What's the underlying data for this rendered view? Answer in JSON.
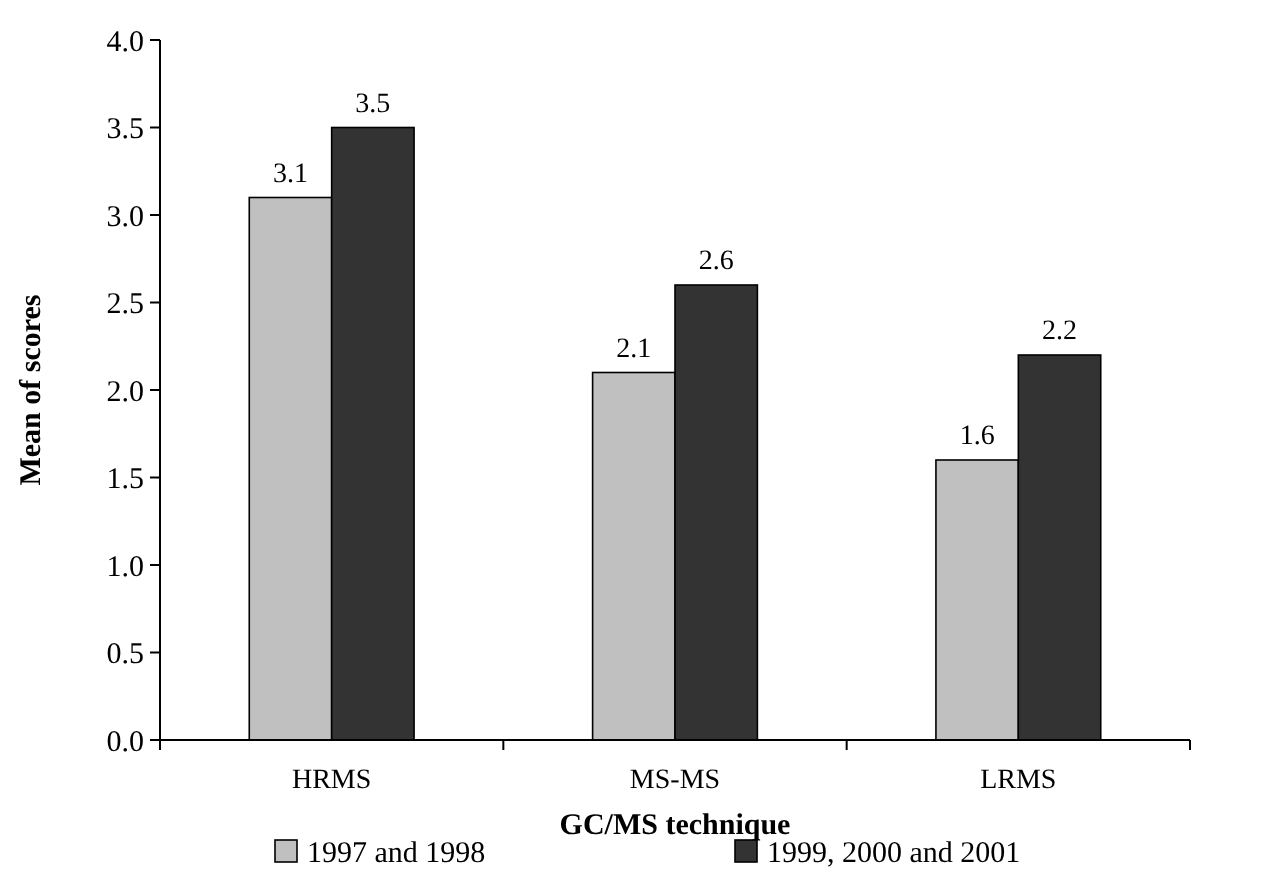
{
  "chart_data": {
    "type": "bar",
    "xlabel": "GC/MS technique",
    "ylabel": "Mean of scores",
    "categories": [
      "HRMS",
      "MS-MS",
      "LRMS"
    ],
    "series": [
      {
        "name": "1997 and 1998",
        "color": "#c0c0c0",
        "values": [
          3.1,
          2.1,
          1.6
        ]
      },
      {
        "name": "1999, 2000 and 2001",
        "color": "#333333",
        "values": [
          3.5,
          2.6,
          2.2
        ]
      }
    ],
    "ylim": [
      0,
      4
    ],
    "yticks": [
      {
        "value": 0,
        "label": "0.0"
      },
      {
        "value": 0.5,
        "label": "0.5"
      },
      {
        "value": 1,
        "label": "1.0"
      },
      {
        "value": 1.5,
        "label": "1.5"
      },
      {
        "value": 2,
        "label": "2.0"
      },
      {
        "value": 2.5,
        "label": "2.5"
      },
      {
        "value": 3,
        "label": "3.0"
      },
      {
        "value": 3.5,
        "label": "3.5"
      },
      {
        "value": 4,
        "label": "4.0"
      }
    ],
    "data_labels": true,
    "legend": "bottom",
    "grid": false
  }
}
